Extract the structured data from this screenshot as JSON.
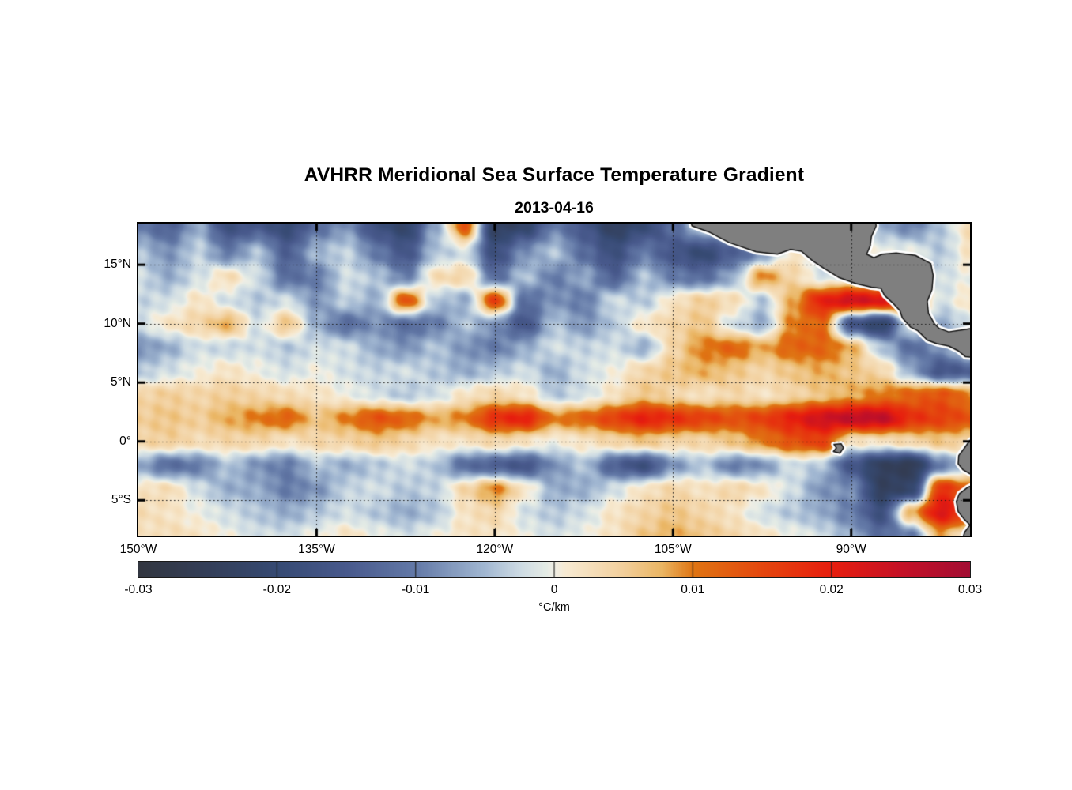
{
  "header": {
    "title": "AVHRR Meridional Sea Surface Temperature Gradient",
    "date": "2013-04-16"
  },
  "axes": {
    "y_ticks": [
      {
        "text": "15°N",
        "lat": 15
      },
      {
        "text": "10°N",
        "lat": 10
      },
      {
        "text": "5°N",
        "lat": 5
      },
      {
        "text": "0°",
        "lat": 0
      },
      {
        "text": "5°S",
        "lat": -5
      }
    ],
    "x_ticks": [
      {
        "text": "150°W",
        "lon": -150
      },
      {
        "text": "135°W",
        "lon": -135
      },
      {
        "text": "120°W",
        "lon": -120
      },
      {
        "text": "105°W",
        "lon": -105
      },
      {
        "text": "90°W",
        "lon": -90
      }
    ]
  },
  "colorbar": {
    "unit_label": "°C/km",
    "min": -0.03,
    "max": 0.03,
    "ticks": [
      {
        "text": "-0.03",
        "value": -0.03
      },
      {
        "text": "-0.02",
        "value": -0.02
      },
      {
        "text": "-0.01",
        "value": -0.01
      },
      {
        "text": "0",
        "value": 0
      },
      {
        "text": "0.01",
        "value": 0.01
      },
      {
        "text": "0.02",
        "value": 0.02
      },
      {
        "text": "0.03",
        "value": 0.03
      }
    ],
    "inner_tick_values": [
      -0.02,
      -0.01,
      0,
      0.01,
      0.02
    ]
  },
  "colors": {
    "background": "#ffffff",
    "frame": "#000000",
    "gridline": "#1a1a1a",
    "land_fill": "#7f7f7f",
    "land_outline": "#111111",
    "coast_halo": "#ffffff"
  },
  "chart_data": {
    "type": "heatmap",
    "title": "AVHRR Meridional Sea Surface Temperature Gradient",
    "subtitle": "2013-04-16",
    "value_units": "°C/km",
    "value_range": [
      -0.03,
      0.03
    ],
    "extent": {
      "lon_min": -150,
      "lon_max": -80,
      "lat_min": -8,
      "lat_max": 18.5
    },
    "gridlines": {
      "lats": [
        15,
        10,
        5,
        0,
        -5
      ],
      "lons": [
        -135,
        -120,
        -105,
        -90
      ],
      "style": "dotted"
    },
    "colormap": {
      "stops": [
        {
          "t": 0.0,
          "c": "#323640"
        },
        {
          "t": 0.083,
          "c": "#333e58"
        },
        {
          "t": 0.167,
          "c": "#364a73"
        },
        {
          "t": 0.25,
          "c": "#48598c"
        },
        {
          "t": 0.333,
          "c": "#6379a7"
        },
        {
          "t": 0.417,
          "c": "#a2b8d2"
        },
        {
          "t": 0.458,
          "c": "#ccdae3"
        },
        {
          "t": 0.49,
          "c": "#e4ebe5"
        },
        {
          "t": 0.5,
          "c": "#f0eee5"
        },
        {
          "t": 0.515,
          "c": "#f7ead2"
        },
        {
          "t": 0.583,
          "c": "#f2cf9c"
        },
        {
          "t": 0.63,
          "c": "#eab562"
        },
        {
          "t": 0.667,
          "c": "#df7513"
        },
        {
          "t": 0.75,
          "c": "#e4470e"
        },
        {
          "t": 0.833,
          "c": "#e71e0e"
        },
        {
          "t": 0.917,
          "c": "#c51126"
        },
        {
          "t": 1.0,
          "c": "#a30d33"
        }
      ]
    },
    "grid": {
      "value_scale": 0.001,
      "lons": [
        -150,
        -147.5,
        -145,
        -142.5,
        -140,
        -137.5,
        -135,
        -132.5,
        -130,
        -127.5,
        -125,
        -122.5,
        -120,
        -117.5,
        -115,
        -112.5,
        -110,
        -107.5,
        -105,
        -102.5,
        -100,
        -97.5,
        -95,
        -92.5,
        -90,
        -87.5,
        -85,
        -82.5,
        -80
      ],
      "lats": [
        18.5,
        16,
        14,
        12,
        10,
        8,
        6,
        4,
        2,
        0,
        -2,
        -4,
        -6,
        -8
      ],
      "values_milli": [
        [
          -10,
          -14,
          -6,
          -18,
          -16,
          -20,
          -12,
          -8,
          -18,
          -22,
          -6,
          14,
          -24,
          -22,
          -10,
          -16,
          -24,
          -20,
          -12,
          0,
          0,
          0,
          0,
          0,
          0,
          -6,
          -10,
          -4,
          3
        ],
        [
          -4,
          -8,
          -3,
          -10,
          -4,
          -14,
          -5,
          -3,
          -10,
          -16,
          -4,
          -2,
          -18,
          -8,
          -4,
          -12,
          -18,
          -10,
          -16,
          -20,
          -14,
          -8,
          2,
          0,
          0,
          0,
          0,
          -4,
          2
        ],
        [
          -2,
          -6,
          -2,
          3,
          -2,
          -12,
          -10,
          -2,
          -4,
          -10,
          3,
          4,
          -12,
          -4,
          -10,
          -6,
          -14,
          -4,
          -10,
          -12,
          -6,
          10,
          4,
          -2,
          0,
          0,
          0,
          -2,
          0
        ],
        [
          -3,
          -2,
          2,
          -2,
          -4,
          -2,
          -8,
          -3,
          -6,
          14,
          -4,
          -6,
          16,
          -12,
          -8,
          -10,
          -2,
          -4,
          2,
          5,
          3,
          -4,
          8,
          20,
          24,
          22,
          16,
          -2,
          2
        ],
        [
          -2,
          2,
          4,
          8,
          -2,
          6,
          -6,
          -12,
          -8,
          -12,
          -10,
          -4,
          -8,
          -16,
          -4,
          -8,
          -4,
          2,
          4,
          6,
          -2,
          -6,
          10,
          12,
          -16,
          -22,
          0,
          -6,
          -2
        ],
        [
          -8,
          -6,
          -2,
          -3,
          -2,
          -4,
          -2,
          -2,
          -6,
          -8,
          -4,
          -8,
          -10,
          -6,
          -2,
          -3,
          -2,
          -6,
          4,
          10,
          12,
          8,
          12,
          12,
          8,
          -4,
          -12,
          -8,
          0
        ],
        [
          -4,
          -2,
          0,
          2,
          0,
          -2,
          0,
          -2,
          -3,
          -2,
          -4,
          -6,
          -4,
          -2,
          -6,
          -2,
          0,
          4,
          6,
          8,
          6,
          4,
          6,
          8,
          6,
          4,
          -6,
          -16,
          -14
        ],
        [
          4,
          5,
          4,
          5,
          4,
          3,
          2,
          0,
          -2,
          -4,
          -2,
          2,
          4,
          2,
          -4,
          -2,
          2,
          6,
          4,
          2,
          4,
          2,
          4,
          6,
          8,
          10,
          12,
          14,
          10
        ],
        [
          5,
          6,
          5,
          8,
          10,
          12,
          6,
          10,
          14,
          12,
          8,
          10,
          18,
          20,
          10,
          12,
          16,
          20,
          18,
          16,
          14,
          16,
          20,
          24,
          26,
          26,
          18,
          16,
          14
        ],
        [
          4,
          5,
          3,
          4,
          4,
          2,
          4,
          4,
          6,
          4,
          2,
          2,
          4,
          2,
          0,
          2,
          4,
          6,
          4,
          4,
          6,
          10,
          14,
          16,
          2,
          2,
          4,
          6,
          4
        ],
        [
          -6,
          -12,
          -10,
          -4,
          -8,
          -10,
          -4,
          -6,
          -4,
          -2,
          -4,
          -12,
          -14,
          -16,
          -8,
          -4,
          -14,
          -18,
          -8,
          -4,
          -10,
          -8,
          -2,
          -4,
          -16,
          -24,
          -26,
          -10,
          -4
        ],
        [
          2,
          3,
          -2,
          -6,
          -6,
          -10,
          -8,
          -3,
          -2,
          -4,
          -3,
          4,
          10,
          2,
          -6,
          -6,
          -2,
          2,
          4,
          2,
          4,
          2,
          -2,
          -8,
          -8,
          -24,
          -22,
          18,
          12
        ],
        [
          3,
          2,
          0,
          -2,
          -4,
          -6,
          -4,
          -2,
          -4,
          -6,
          -4,
          2,
          4,
          -2,
          -4,
          -2,
          2,
          4,
          6,
          4,
          2,
          -2,
          -4,
          -6,
          -10,
          -18,
          8,
          22,
          16
        ],
        [
          2,
          3,
          2,
          0,
          -2,
          -2,
          0,
          2,
          0,
          -2,
          0,
          2,
          2,
          0,
          -2,
          0,
          2,
          6,
          8,
          6,
          4,
          2,
          0,
          -2,
          -6,
          -12,
          -10,
          8,
          0
        ]
      ]
    },
    "land": {
      "polygons": {
        "mexico_central_america": [
          [
            -103.6,
            19.0
          ],
          [
            -103.4,
            18.3
          ],
          [
            -102.0,
            17.8
          ],
          [
            -100.3,
            16.9
          ],
          [
            -98.0,
            16.1
          ],
          [
            -96.2,
            15.9
          ],
          [
            -95.1,
            16.3
          ],
          [
            -94.2,
            16.15
          ],
          [
            -93.2,
            15.3
          ],
          [
            -92.3,
            14.7
          ],
          [
            -91.0,
            13.9
          ],
          [
            -89.6,
            13.4
          ],
          [
            -88.3,
            13.1
          ],
          [
            -87.5,
            13.0
          ],
          [
            -87.2,
            12.4
          ],
          [
            -86.5,
            11.75
          ],
          [
            -85.9,
            11.1
          ],
          [
            -85.7,
            10.5
          ],
          [
            -85.0,
            9.7
          ],
          [
            -84.4,
            9.4
          ],
          [
            -83.6,
            8.6
          ],
          [
            -82.8,
            8.3
          ],
          [
            -81.8,
            8.1
          ],
          [
            -81.0,
            7.7
          ],
          [
            -80.4,
            7.2
          ],
          [
            -79.3,
            7.1
          ],
          [
            -79.3,
            9.7
          ],
          [
            -80.5,
            9.5
          ],
          [
            -81.8,
            9.3
          ],
          [
            -82.6,
            9.6
          ],
          [
            -83.0,
            10.0
          ],
          [
            -83.5,
            10.9
          ],
          [
            -83.6,
            11.9
          ],
          [
            -83.2,
            12.9
          ],
          [
            -83.1,
            14.1
          ],
          [
            -83.3,
            15.1
          ],
          [
            -84.6,
            15.8
          ],
          [
            -86.2,
            16.0
          ],
          [
            -87.4,
            15.9
          ],
          [
            -88.1,
            15.6
          ],
          [
            -88.7,
            15.9
          ],
          [
            -88.4,
            16.6
          ],
          [
            -88.3,
            17.4
          ],
          [
            -87.9,
            18.3
          ],
          [
            -88.0,
            19.0
          ]
        ],
        "south_america": [
          [
            -79.3,
            0.4
          ],
          [
            -80.0,
            0.1
          ],
          [
            -80.5,
            -0.6
          ],
          [
            -80.95,
            -1.2
          ],
          [
            -81.0,
            -1.9
          ],
          [
            -80.6,
            -2.4
          ],
          [
            -80.0,
            -2.75
          ],
          [
            -79.3,
            -2.9
          ],
          [
            -79.3,
            -3.5
          ],
          [
            -80.2,
            -3.9
          ],
          [
            -80.9,
            -4.45
          ],
          [
            -81.15,
            -5.1
          ],
          [
            -81.0,
            -5.95
          ],
          [
            -80.5,
            -6.6
          ],
          [
            -80.0,
            -7.1
          ],
          [
            -80.45,
            -7.7
          ],
          [
            -80.7,
            -8.5
          ],
          [
            -79.3,
            -8.5
          ]
        ],
        "galapagos": [
          [
            -91.45,
            -0.25
          ],
          [
            -90.85,
            -0.2
          ],
          [
            -90.65,
            -0.55
          ],
          [
            -90.95,
            -1.0
          ],
          [
            -91.5,
            -0.85
          ],
          [
            -91.25,
            -0.55
          ]
        ]
      }
    }
  }
}
